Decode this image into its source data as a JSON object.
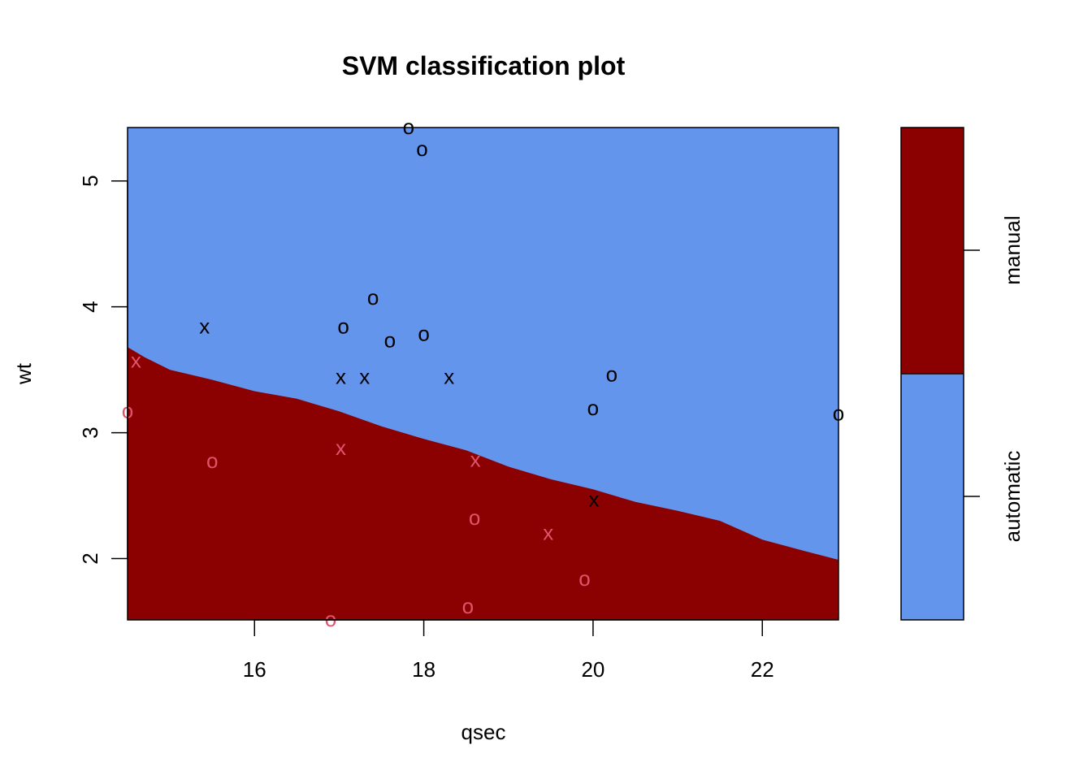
{
  "chart_data": {
    "type": "scatter",
    "title": "SVM classification plot",
    "xlabel": "qsec",
    "ylabel": "wt",
    "xlim": [
      14.5,
      22.9
    ],
    "ylim": [
      1.513,
      5.424
    ],
    "xticks": [
      16,
      18,
      20,
      22
    ],
    "yticks": [
      2,
      3,
      4,
      5
    ],
    "grid": false,
    "colors": {
      "automatic_region": "#6495ED",
      "manual_region": "#8B0000",
      "automatic_points": "#000000",
      "manual_points": "#DF536B"
    },
    "legend": {
      "position": "right",
      "classes": [
        "manual",
        "automatic"
      ]
    },
    "decision_boundary": [
      [
        14.5,
        3.68
      ],
      [
        14.7,
        3.6
      ],
      [
        15.0,
        3.5
      ],
      [
        15.5,
        3.42
      ],
      [
        16.0,
        3.33
      ],
      [
        16.5,
        3.27
      ],
      [
        17.0,
        3.17
      ],
      [
        17.5,
        3.05
      ],
      [
        18.0,
        2.95
      ],
      [
        18.5,
        2.86
      ],
      [
        19.0,
        2.73
      ],
      [
        19.5,
        2.63
      ],
      [
        20.0,
        2.55
      ],
      [
        20.5,
        2.45
      ],
      [
        21.0,
        2.38
      ],
      [
        21.5,
        2.3
      ],
      [
        22.0,
        2.15
      ],
      [
        22.5,
        2.06
      ],
      [
        22.9,
        1.99
      ]
    ],
    "series": [
      {
        "name": "automatic",
        "points": [
          {
            "x": 17.82,
            "y": 5.424,
            "marker": "o"
          },
          {
            "x": 17.98,
            "y": 5.25,
            "marker": "o"
          },
          {
            "x": 17.4,
            "y": 4.07,
            "marker": "o"
          },
          {
            "x": 17.05,
            "y": 3.84,
            "marker": "o"
          },
          {
            "x": 17.6,
            "y": 3.73,
            "marker": "o"
          },
          {
            "x": 18.0,
            "y": 3.78,
            "marker": "o"
          },
          {
            "x": 20.22,
            "y": 3.46,
            "marker": "o"
          },
          {
            "x": 20.0,
            "y": 3.19,
            "marker": "o"
          },
          {
            "x": 22.9,
            "y": 3.15,
            "marker": "o"
          },
          {
            "x": 15.41,
            "y": 3.84,
            "marker": "x"
          },
          {
            "x": 17.02,
            "y": 3.44,
            "marker": "x"
          },
          {
            "x": 17.3,
            "y": 3.44,
            "marker": "x"
          },
          {
            "x": 18.3,
            "y": 3.44,
            "marker": "x"
          },
          {
            "x": 20.01,
            "y": 2.465,
            "marker": "x"
          }
        ]
      },
      {
        "name": "manual",
        "points": [
          {
            "x": 14.6,
            "y": 3.57,
            "marker": "x"
          },
          {
            "x": 14.5,
            "y": 3.17,
            "marker": "o"
          },
          {
            "x": 15.5,
            "y": 2.77,
            "marker": "o"
          },
          {
            "x": 17.02,
            "y": 2.875,
            "marker": "x"
          },
          {
            "x": 18.61,
            "y": 2.78,
            "marker": "x"
          },
          {
            "x": 18.6,
            "y": 2.32,
            "marker": "o"
          },
          {
            "x": 19.47,
            "y": 2.2,
            "marker": "x"
          },
          {
            "x": 19.9,
            "y": 1.835,
            "marker": "o"
          },
          {
            "x": 18.52,
            "y": 1.615,
            "marker": "o"
          },
          {
            "x": 16.9,
            "y": 1.513,
            "marker": "o"
          }
        ]
      }
    ]
  }
}
